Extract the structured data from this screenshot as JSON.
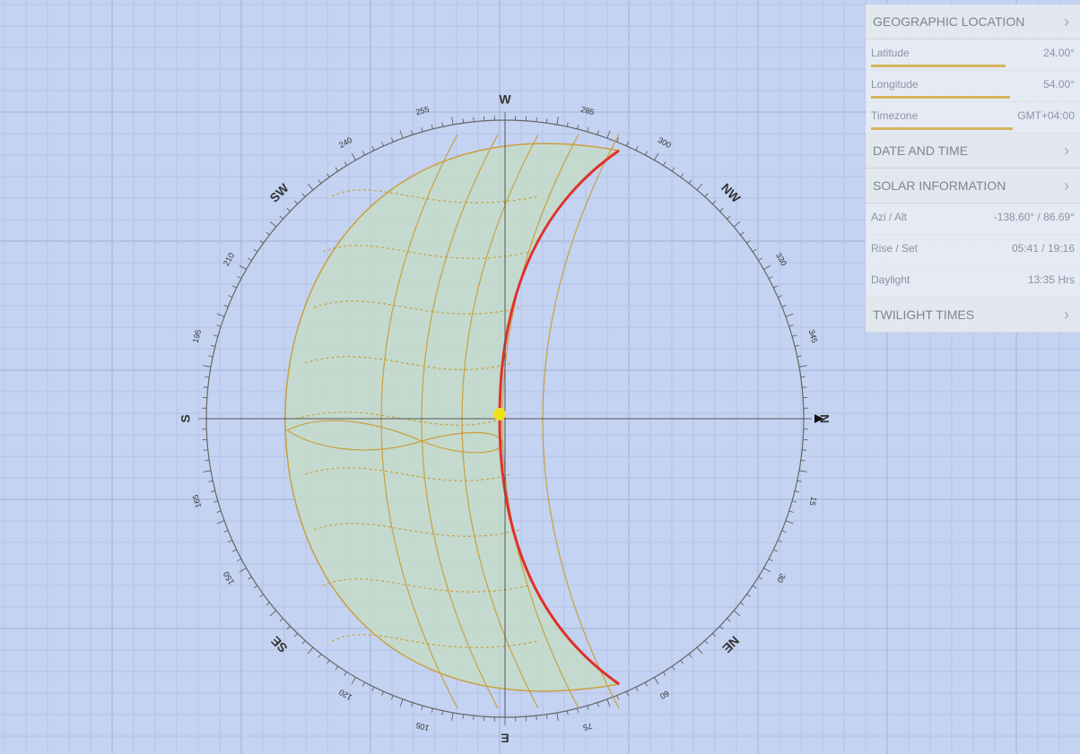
{
  "panel": {
    "sections": [
      {
        "title": "GEOGRAPHIC LOCATION",
        "rows": [
          {
            "label": "Latitude",
            "value": "24.00°"
          },
          {
            "label": "Longitude",
            "value": "54.00°"
          },
          {
            "label": "Timezone",
            "value": "GMT+04:00"
          }
        ]
      },
      {
        "title": "DATE AND TIME"
      },
      {
        "title": "SOLAR INFORMATION",
        "rows": [
          {
            "label": "Azi / Alt",
            "value": "-138.60° / 86.69°"
          },
          {
            "label": "Rise / Set",
            "value": "05:41 / 19:16"
          },
          {
            "label": "Daylight",
            "value": "13:35 Hrs"
          }
        ]
      },
      {
        "title": "TWILIGHT TIMES"
      }
    ]
  },
  "compass": {
    "labels": [
      "N",
      "15",
      "30",
      "NE",
      "60",
      "75",
      "E",
      "105",
      "120",
      "SE",
      "150",
      "165",
      "S",
      "195",
      "210",
      "SW",
      "240",
      "255",
      "W",
      "285",
      "300",
      "NW",
      "330",
      "345"
    ]
  }
}
